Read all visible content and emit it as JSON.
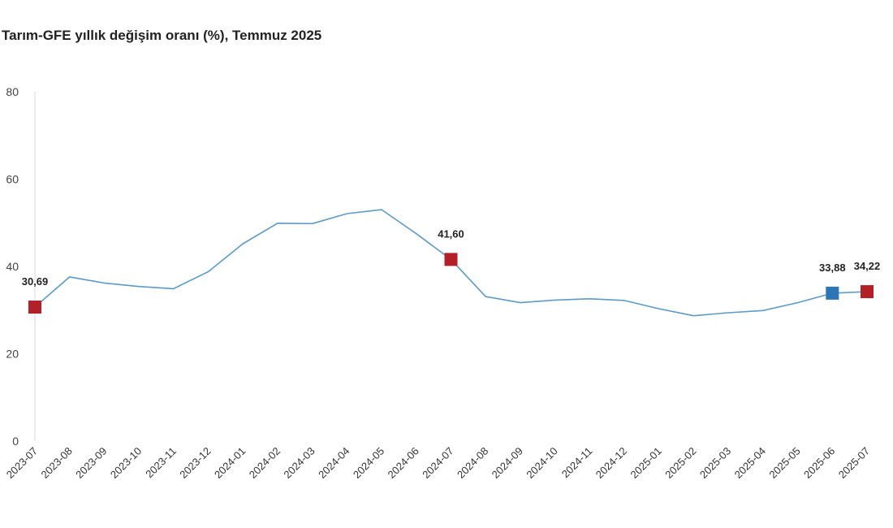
{
  "chart_data": {
    "type": "line",
    "title": "Tarım-GFE yıllık değişim oranı (%), Temmuz 2025",
    "xlabel": "",
    "ylabel": "",
    "ylim": [
      0,
      80
    ],
    "yticks": [
      "0",
      "20",
      "40",
      "60",
      "80"
    ],
    "grid": false,
    "categories": [
      "2023-07",
      "2023-08",
      "2023-09",
      "2023-10",
      "2023-11",
      "2023-12",
      "2024-01",
      "2024-02",
      "2024-03",
      "2024-04",
      "2024-05",
      "2024-06",
      "2024-07",
      "2024-08",
      "2024-09",
      "2024-10",
      "2024-11",
      "2024-12",
      "2025-01",
      "2025-02",
      "2025-03",
      "2025-04",
      "2025-05",
      "2025-06",
      "2025-07"
    ],
    "series": [
      {
        "values": [
          30.69,
          37.6,
          36.2,
          35.4,
          34.9,
          38.8,
          45.2,
          49.9,
          49.8,
          52.1,
          53.0,
          47.5,
          41.6,
          33.1,
          31.7,
          32.3,
          32.6,
          32.2,
          30.3,
          28.7,
          29.4,
          29.9,
          31.7,
          33.88,
          34.22
        ],
        "color": "#5b9bc8"
      }
    ],
    "highlights": [
      {
        "index": 0,
        "label": "30,69",
        "color": "#b22028"
      },
      {
        "index": 12,
        "label": "41,60",
        "color": "#b22028"
      },
      {
        "index": 23,
        "label": "33,88",
        "color": "#2e75b6"
      },
      {
        "index": 24,
        "label": "34,22",
        "color": "#b22028"
      }
    ]
  }
}
